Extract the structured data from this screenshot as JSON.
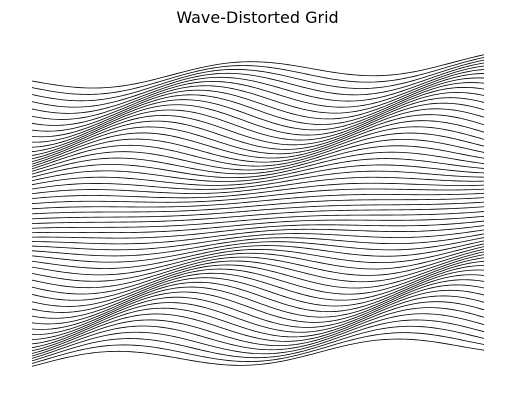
{
  "chart_data": {
    "type": "line",
    "title": "Wave-Distorted Grid",
    "xlabel": "",
    "ylabel": "",
    "axes_visible": false,
    "grid": false,
    "line_color": "#000000",
    "line_count": 60,
    "background": "#ffffff",
    "x_range": [
      0,
      1
    ],
    "y_range": [
      0,
      1
    ],
    "distortion": {
      "description": "Horizontal lines displaced by a sine wave whose phase and amplitude vary with the line index",
      "base_amplitude": 0.03,
      "amplitude_modulation": 0.025,
      "wavelength": 0.62,
      "phase_shift_per_line": 0.025,
      "global_tilt": 0.06
    }
  }
}
